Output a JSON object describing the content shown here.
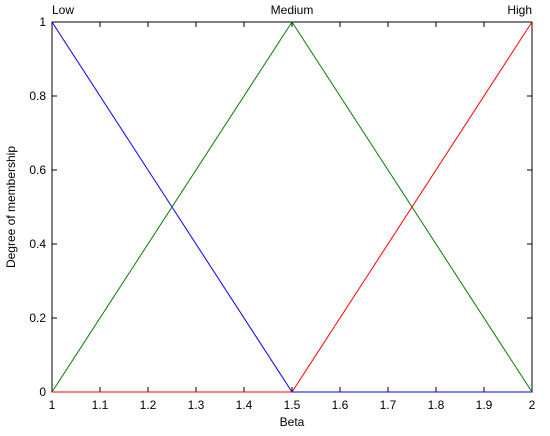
{
  "chart_data": {
    "type": "line",
    "xlabel": "Beta",
    "ylabel": "Degree of membership",
    "xlim": [
      1,
      2
    ],
    "ylim": [
      0,
      1
    ],
    "xticks": [
      "1",
      "1.1",
      "1.2",
      "1.3",
      "1.4",
      "1.5",
      "1.6",
      "1.7",
      "1.8",
      "1.9",
      "2"
    ],
    "yticks": [
      "0",
      "0.2",
      "0.4",
      "0.6",
      "0.8",
      "1"
    ],
    "grid": false,
    "series": [
      {
        "name": "Low",
        "color": "#0000ff",
        "x": [
          1,
          1.5,
          2
        ],
        "y": [
          1,
          0,
          0
        ],
        "label_anchor": "start"
      },
      {
        "name": "Medium",
        "color": "#008000",
        "x": [
          1,
          1.5,
          2
        ],
        "y": [
          0,
          1,
          0
        ],
        "label_anchor": "middle"
      },
      {
        "name": "High",
        "color": "#ff0000",
        "x": [
          1,
          1.5,
          2
        ],
        "y": [
          0,
          0,
          1
        ],
        "label_anchor": "end"
      }
    ]
  }
}
